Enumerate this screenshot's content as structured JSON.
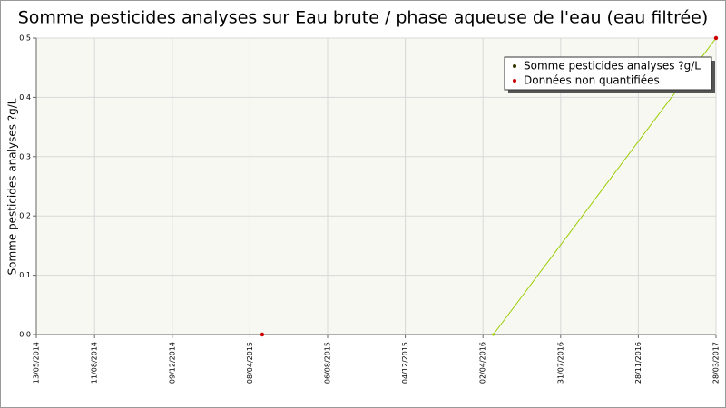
{
  "chart_data": {
    "type": "line",
    "title": "Somme pesticides analyses sur Eau brute / phase aqueuse de l'eau (eau filtrée)",
    "y_label": "Somme pesticides analyses ?g/L",
    "x": [
      "27/04/2015",
      "18/04/2016",
      "28/03/2017"
    ],
    "series": [
      {
        "name": "Somme pesticides analyses ?g/L",
        "color": "#99cc00",
        "values": [
          null,
          0,
          0.5
        ]
      },
      {
        "name": "Données non quantifiées",
        "color": "#cc0000",
        "values": [
          0,
          null,
          0.5
        ]
      }
    ],
    "xlim": [
      "13/05/2014",
      "28/03/2017"
    ],
    "xticks": [
      "13/05/2014",
      "11/08/2014",
      "09/12/2014",
      "08/04/2015",
      "06/08/2015",
      "04/12/2015",
      "02/04/2016",
      "31/07/2016",
      "28/11/2016",
      "28/03/2017"
    ],
    "ylim": [
      0,
      0.5
    ],
    "yticks": [
      {
        "value": 0,
        "label": "0.0"
      },
      0.1,
      0.2,
      0.3,
      0.4,
      0.5
    ],
    "grid": true,
    "legend": "top-right"
  }
}
